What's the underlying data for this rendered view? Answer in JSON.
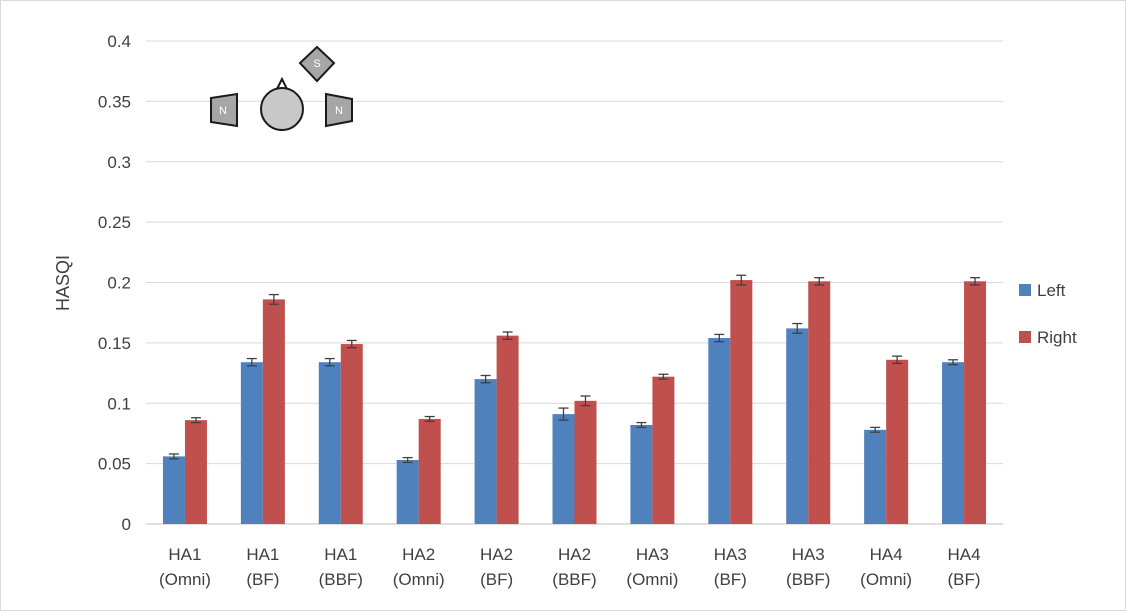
{
  "chart_data": {
    "type": "bar",
    "ylabel": "HASQI",
    "xlabel": "",
    "ylim": [
      0,
      0.4
    ],
    "yticks": [
      "0",
      "0.05",
      "0.1",
      "0.15",
      "0.2",
      "0.25",
      "0.3",
      "0.35",
      "0.4"
    ],
    "grid": true,
    "legend_position": "right",
    "categories": [
      [
        "HA1",
        "(Omni)"
      ],
      [
        "HA1",
        "(BF)"
      ],
      [
        "HA1",
        "(BBF)"
      ],
      [
        "HA2",
        "(Omni)"
      ],
      [
        "HA2",
        "(BF)"
      ],
      [
        "HA2",
        "(BBF)"
      ],
      [
        "HA3",
        "(Omni)"
      ],
      [
        "HA3",
        "(BF)"
      ],
      [
        "HA3",
        "(BBF)"
      ],
      [
        "HA4",
        "(Omni)"
      ],
      [
        "HA4",
        "(BF)"
      ]
    ],
    "series": [
      {
        "name": "Left",
        "color": "#4f81bd",
        "values": [
          0.056,
          0.134,
          0.134,
          0.053,
          0.12,
          0.091,
          0.082,
          0.154,
          0.162,
          0.078,
          0.134
        ],
        "errors": [
          0.002,
          0.003,
          0.003,
          0.002,
          0.003,
          0.005,
          0.002,
          0.003,
          0.004,
          0.002,
          0.002
        ]
      },
      {
        "name": "Right",
        "color": "#c0504d",
        "values": [
          0.086,
          0.186,
          0.149,
          0.087,
          0.156,
          0.102,
          0.122,
          0.202,
          0.201,
          0.136,
          0.201
        ],
        "errors": [
          0.002,
          0.004,
          0.003,
          0.002,
          0.003,
          0.004,
          0.002,
          0.004,
          0.003,
          0.003,
          0.003
        ]
      }
    ],
    "inset_icon": {
      "description_labels": [
        "S",
        "N",
        "N"
      ],
      "shapes": [
        "speaker-source-icon",
        "head-icon",
        "noise-left-icon",
        "noise-right-icon"
      ]
    }
  }
}
